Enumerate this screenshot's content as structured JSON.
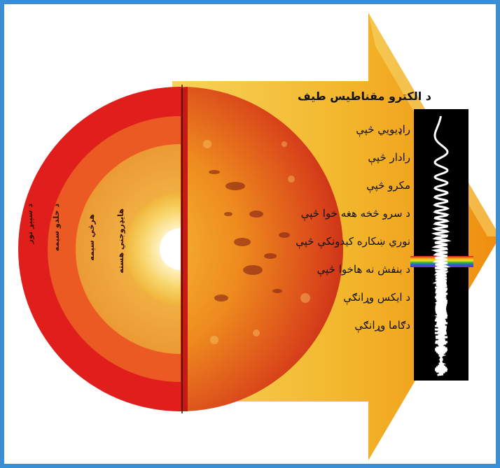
{
  "title": "د الکترو مقناطیس طیف",
  "spectrum_items": [
    "راډيويي څپې",
    "رادار څپې",
    "مکرو څپې",
    "د سرو څخه هغه خوا څپې",
    "نوري ښکاره کیدونکې څپې",
    "د بنفش نه هاخوا څپې",
    "د ایکس وړانګې",
    "دګاما وړانګې"
  ],
  "sun_layers": [
    "د سپېړ نور",
    "د حلدو سیمه",
    "هرڅي سیمه",
    "هايډروجني هسته"
  ],
  "colors": {
    "frame": "#3a8fd4",
    "arrow": "#f0b020",
    "sun_outer": "#d81c1c",
    "sun_core": "#fff6d8"
  },
  "icons": [
    "arrow-shape",
    "sun-cutaway",
    "wave-strip",
    "rainbow-band"
  ]
}
